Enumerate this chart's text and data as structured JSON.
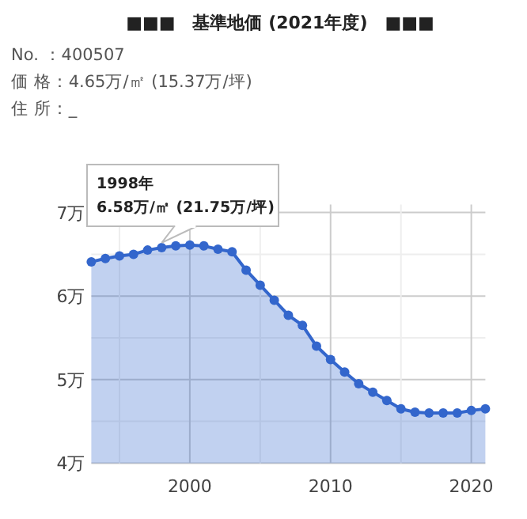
{
  "chart_data": {
    "type": "area",
    "title": "■■■　基準地価 (2021年度)　■■■",
    "annotations": [
      "No. ：400507",
      "価 格：4.65万/㎡ (15.37万/坪)",
      "住 所：_",
      {
        "text": "1998年\n6.58万/㎡ (21.75万/坪)",
        "x": 1998,
        "y": 6.58
      }
    ],
    "x": [
      1993,
      1994,
      1995,
      1996,
      1997,
      1998,
      1999,
      2000,
      2001,
      2002,
      2003,
      2004,
      2005,
      2006,
      2007,
      2008,
      2009,
      2010,
      2011,
      2012,
      2013,
      2014,
      2015,
      2016,
      2017,
      2018,
      2019,
      2020,
      2021
    ],
    "series": [
      {
        "color": "#3366cc",
        "values": [
          6.41,
          6.45,
          6.48,
          6.5,
          6.55,
          6.58,
          6.6,
          6.61,
          6.6,
          6.56,
          6.53,
          6.31,
          6.13,
          5.95,
          5.77,
          5.65,
          5.4,
          5.24,
          5.09,
          4.95,
          4.85,
          4.75,
          4.65,
          4.61,
          4.6,
          4.6,
          4.6,
          4.63,
          4.65
        ]
      }
    ],
    "xlim": [
      1993,
      2021
    ],
    "xticks": [
      {
        "value": 1995,
        "label": null
      },
      2000,
      {
        "value": 2005,
        "label": null
      },
      2010,
      {
        "value": 2015,
        "label": null
      },
      2020
    ],
    "ylim": [
      4,
      7
    ],
    "yticks": [
      {
        "value": 4,
        "label": "4万"
      },
      {
        "value": 4.5,
        "label": null
      },
      {
        "value": 5,
        "label": "5万"
      },
      {
        "value": 5.5,
        "label": null
      },
      {
        "value": 6,
        "label": "6万"
      },
      {
        "value": 6.5,
        "label": null
      },
      {
        "value": 7,
        "label": "7万"
      }
    ],
    "grid": true,
    "marker": "circle"
  }
}
